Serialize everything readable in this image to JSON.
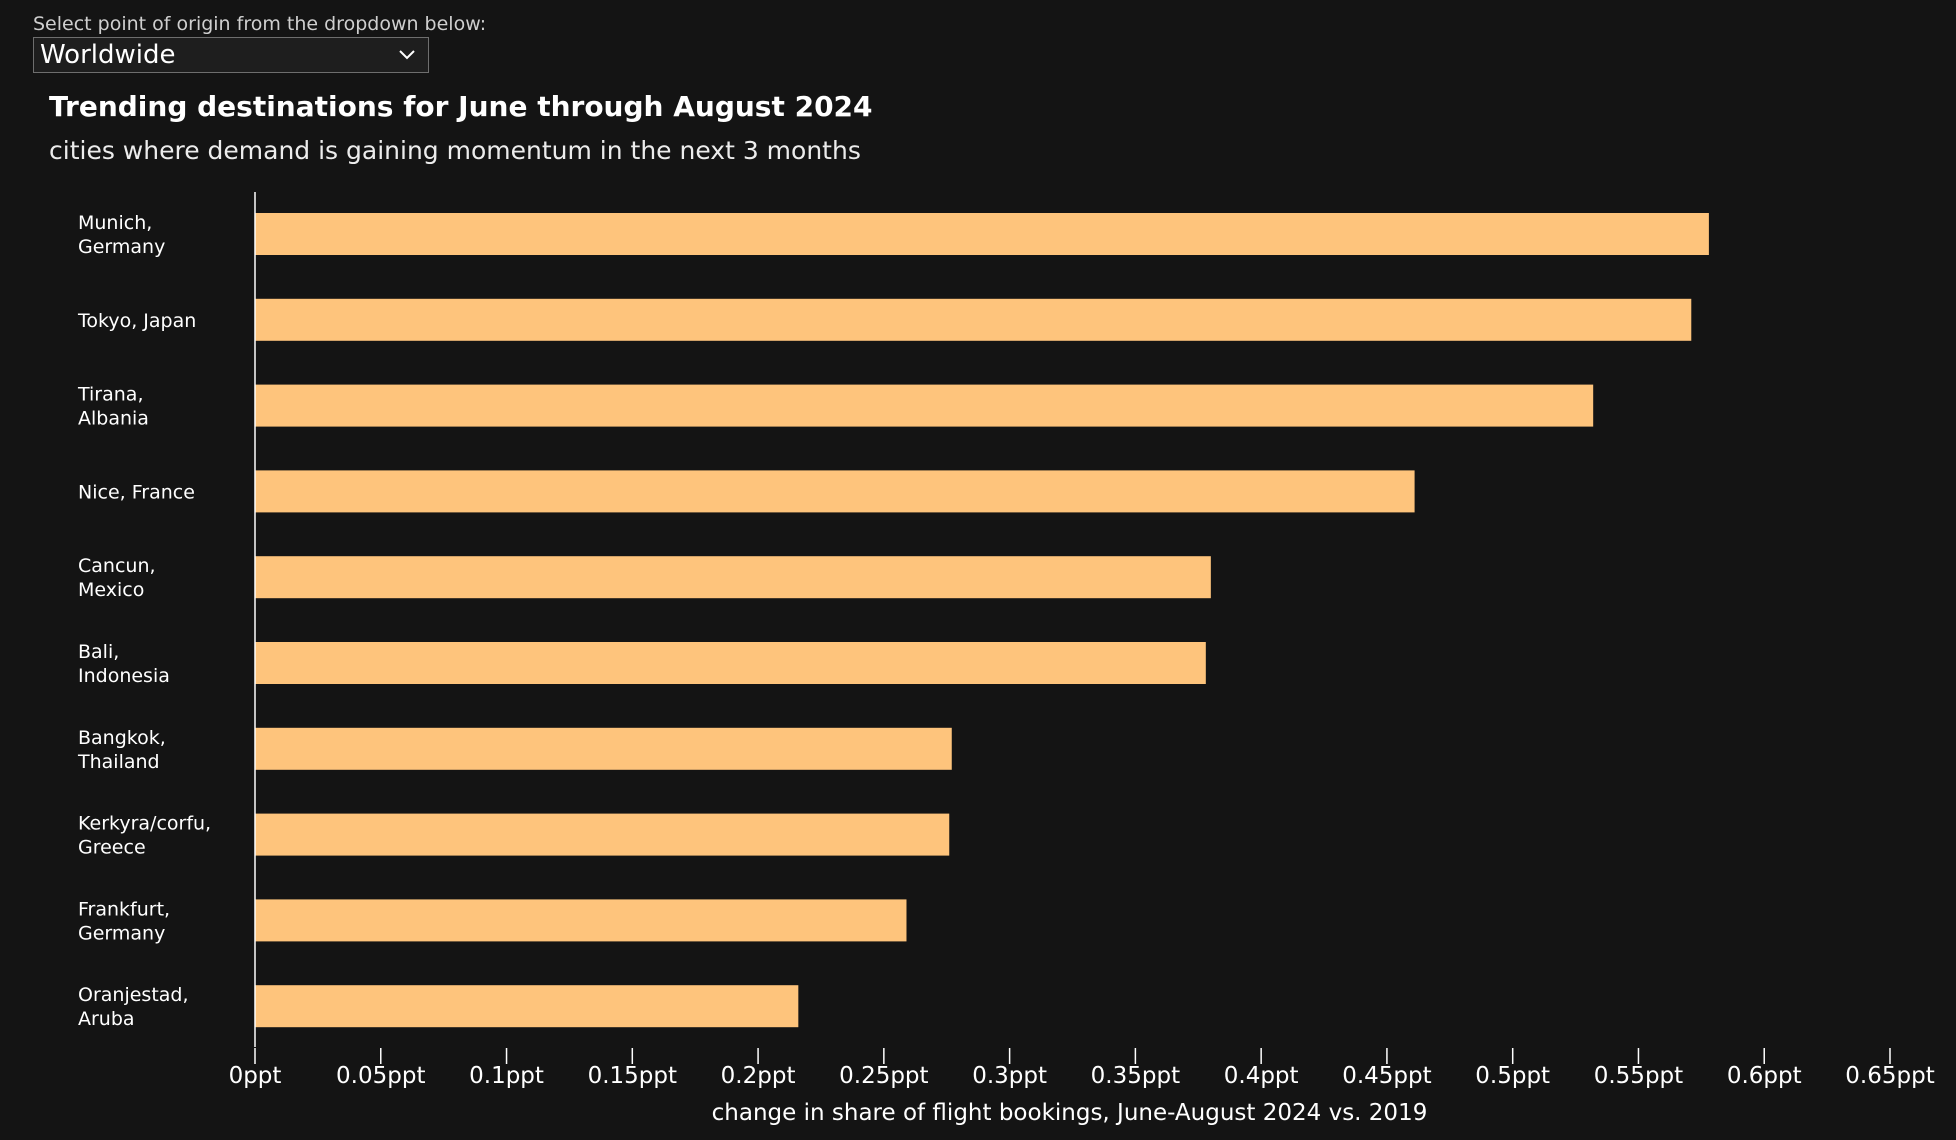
{
  "dropdown": {
    "label": "Select point of origin from the dropdown below:",
    "selected": "Worldwide"
  },
  "icons": {
    "dropdown": "chevron-down-icon"
  },
  "chart_data": {
    "type": "bar",
    "orientation": "horizontal",
    "title": "Trending destinations for June through August 2024",
    "subtitle": "cities where demand is gaining momentum in the next 3 months",
    "xlabel": "change in share of flight bookings, June-August 2024 vs. 2019",
    "ylabel": "",
    "categories": [
      [
        "Munich,",
        "Germany"
      ],
      [
        "Tokyo, Japan"
      ],
      [
        "Tirana,",
        "Albania"
      ],
      [
        "Nice, France"
      ],
      [
        "Cancun,",
        "Mexico"
      ],
      [
        "Bali,",
        "Indonesia"
      ],
      [
        "Bangkok,",
        "Thailand"
      ],
      [
        "Kerkyra/corfu,",
        "Greece"
      ],
      [
        "Frankfurt,",
        "Germany"
      ],
      [
        "Oranjestad,",
        "Aruba"
      ]
    ],
    "values": [
      0.578,
      0.571,
      0.532,
      0.461,
      0.38,
      0.378,
      0.277,
      0.276,
      0.259,
      0.216
    ],
    "xlim": [
      0,
      0.65
    ],
    "ticks": [
      0,
      0.05,
      0.1,
      0.15,
      0.2,
      0.25,
      0.3,
      0.35,
      0.4,
      0.45,
      0.5,
      0.55,
      0.6,
      0.65
    ],
    "tick_labels": [
      "0ppt",
      "0.05ppt",
      "0.1ppt",
      "0.15ppt",
      "0.2ppt",
      "0.25ppt",
      "0.3ppt",
      "0.35ppt",
      "0.4ppt",
      "0.45ppt",
      "0.5ppt",
      "0.55ppt",
      "0.6ppt",
      "0.65ppt"
    ],
    "bar_color": "#FEC47C",
    "grid": false,
    "legend": "none"
  }
}
